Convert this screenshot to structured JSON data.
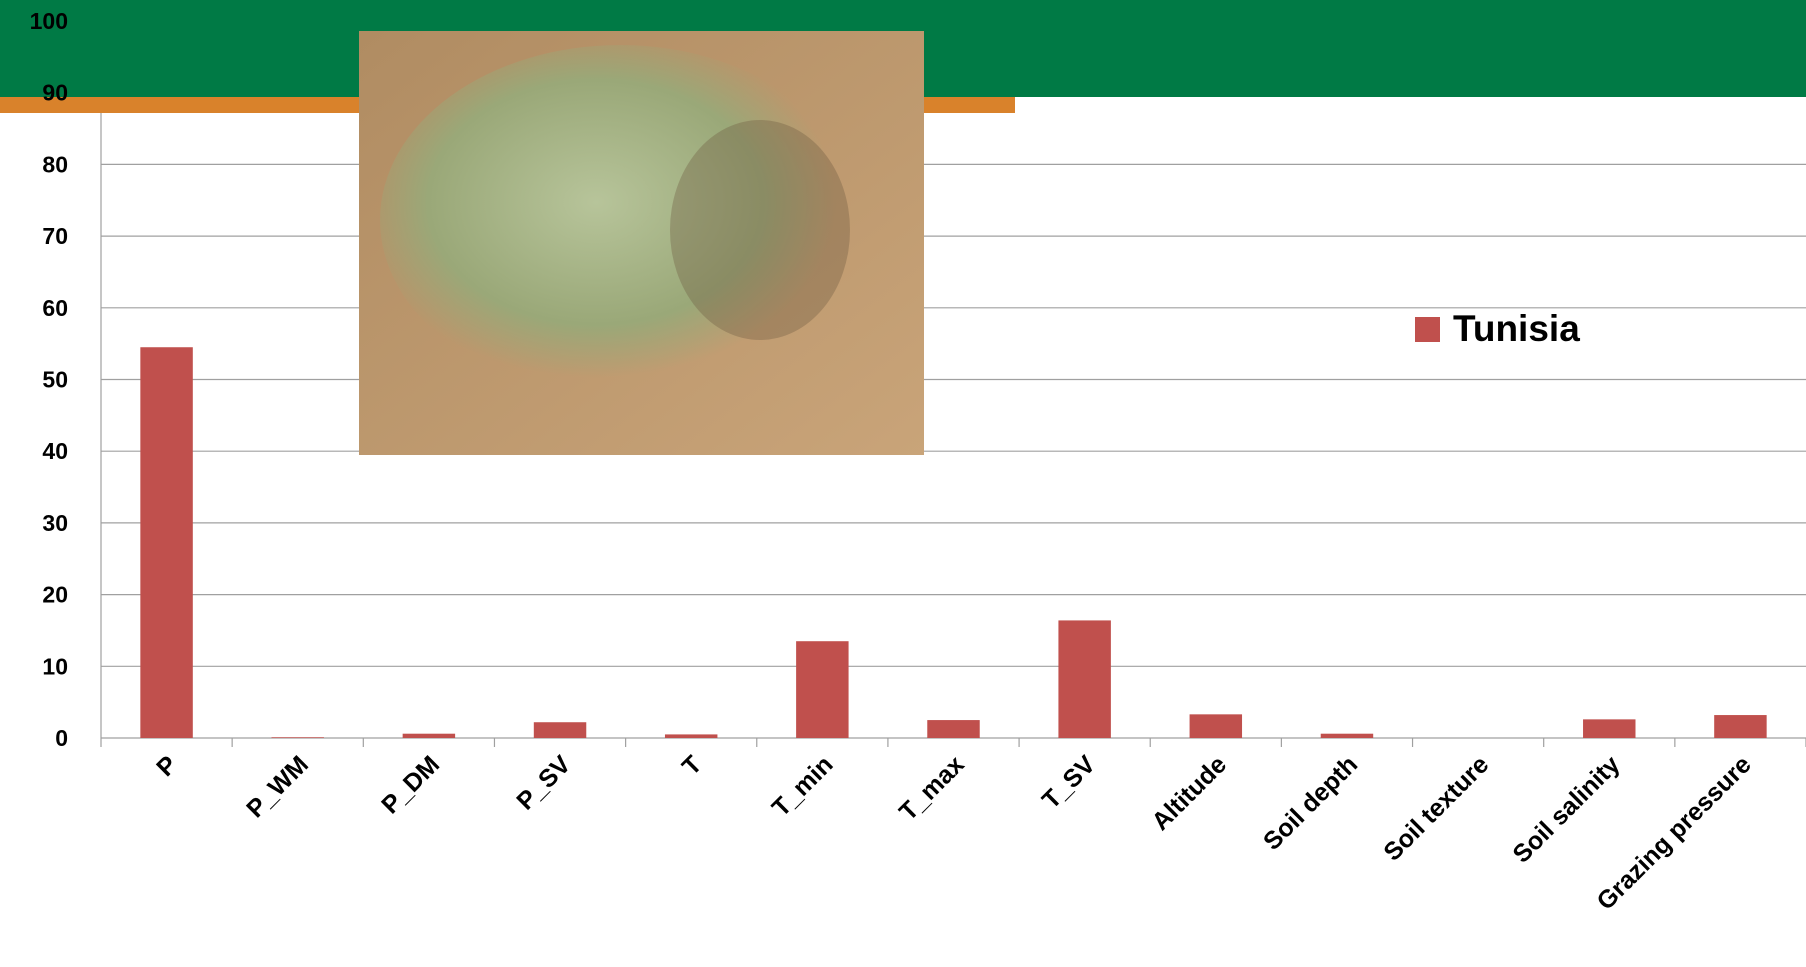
{
  "chart_data": {
    "type": "bar",
    "categories": [
      "P",
      "P_WM",
      "P_DM",
      "P_SV",
      "T",
      "T_min",
      "T_max",
      "T_SV",
      "Altitude",
      "Soil depth",
      "Soil texture",
      "Soil salinity",
      "Grazing pressure"
    ],
    "series": [
      {
        "name": "Tunisia",
        "color": "#c0504d",
        "values": [
          54.5,
          0.1,
          0.6,
          2.2,
          0.5,
          13.5,
          2.5,
          16.4,
          3.3,
          0.6,
          0,
          2.6,
          3.2
        ]
      }
    ],
    "ylim": [
      0,
      100
    ],
    "yticks": [
      0,
      10,
      20,
      30,
      40,
      50,
      60,
      70,
      80,
      90,
      100
    ],
    "grid": true,
    "legend": "right"
  }
}
